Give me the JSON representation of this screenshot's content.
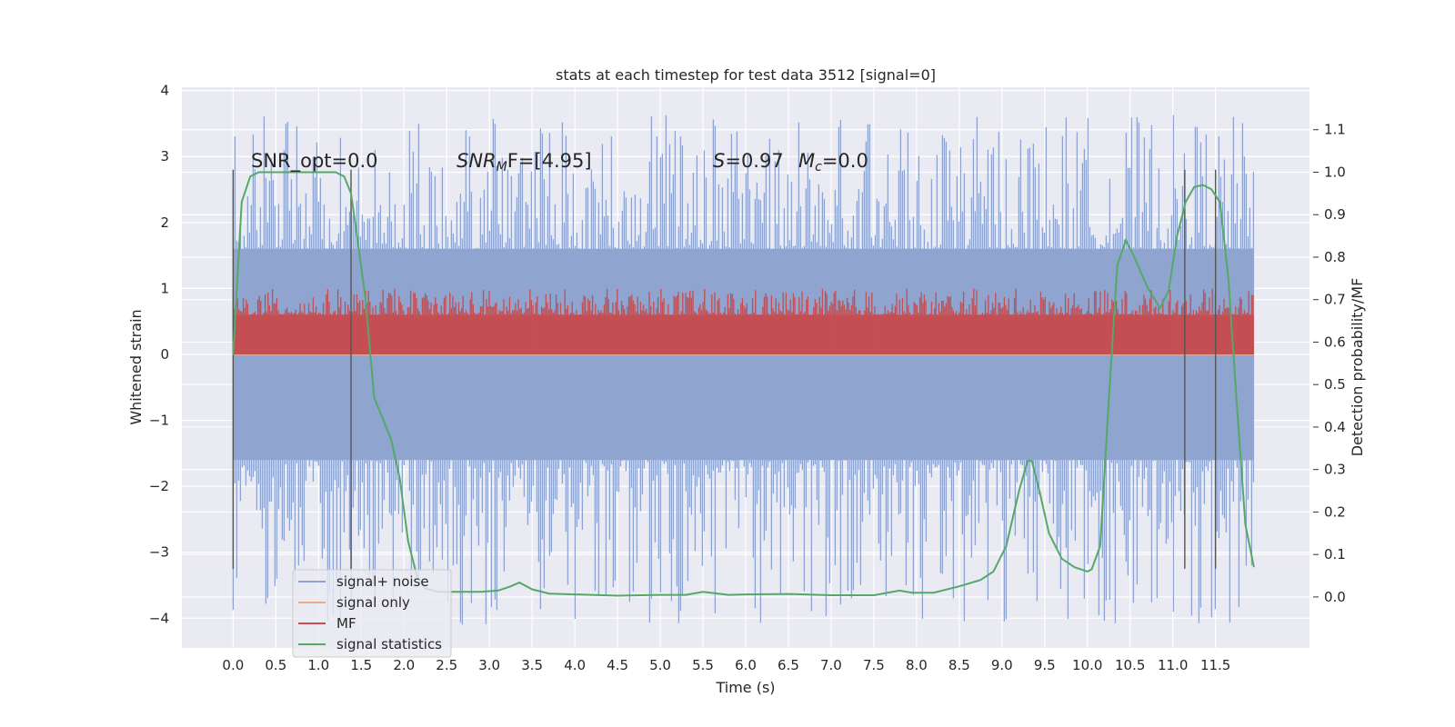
{
  "chart_data": {
    "type": "line",
    "title": "stats at each timestep for test data 3512 [signal=0]",
    "xlabel": "Time (s)",
    "ylabel": "Whitened strain",
    "y2label": "Detection probability/MF",
    "xlim": [
      -0.6,
      12.6
    ],
    "ylim": [
      -4.45,
      4.05
    ],
    "y2lim": [
      -0.12,
      1.2
    ],
    "xticks": [
      0.0,
      0.5,
      1.0,
      1.5,
      2.0,
      2.5,
      3.0,
      3.5,
      4.0,
      4.5,
      5.0,
      5.5,
      6.0,
      6.5,
      7.0,
      7.5,
      8.0,
      8.5,
      9.0,
      9.5,
      10.0,
      10.5,
      11.0,
      11.5
    ],
    "xticklabels": [
      "0.0",
      "0.5",
      "1.0",
      "1.5",
      "2.0",
      "2.5",
      "3.0",
      "3.5",
      "4.0",
      "4.5",
      "5.0",
      "5.5",
      "6.0",
      "6.5",
      "7.0",
      "7.5",
      "8.0",
      "8.5",
      "9.0",
      "9.5",
      "10.0",
      "10.5",
      "11.0",
      "11.5"
    ],
    "yticks": [
      -4,
      -3,
      -2,
      -1,
      0,
      1,
      2,
      3,
      4
    ],
    "yticklabels": [
      "−4",
      "−3",
      "−2",
      "−1",
      "0",
      "1",
      "2",
      "3",
      "4"
    ],
    "y2ticks": [
      0.0,
      0.1,
      0.2,
      0.3,
      0.4,
      0.5,
      0.6,
      0.7,
      0.8,
      0.9,
      1.0,
      1.1
    ],
    "y2ticklabels": [
      "0.0",
      "0.1",
      "0.2",
      "0.3",
      "0.4",
      "0.5",
      "0.6",
      "0.7",
      "0.8",
      "0.9",
      "1.0",
      "1.1"
    ],
    "grid": true,
    "legend_position": "bottom-left",
    "annotations": {
      "snr_opt": "SNR_opt=0.0",
      "snr_mf_main": "SNR",
      "snr_mf_sub": "M",
      "snr_mf_rest": "F=[4.95]",
      "s_label": "S",
      "s_value": "=0.97",
      "mc_label": "M",
      "mc_sub": "c",
      "mc_value": "=0.0"
    },
    "vertical_markers": [
      {
        "x": 0.0,
        "ymin": -3.25,
        "ymax": 2.8
      },
      {
        "x": 1.38,
        "ymin": -3.25,
        "ymax": 2.8
      },
      {
        "x": 11.14,
        "ymin": -3.25,
        "ymax": 2.8
      },
      {
        "x": 11.5,
        "ymin": -3.25,
        "ymax": 2.8
      }
    ],
    "series": [
      {
        "name": "signal+ noise",
        "color": "#8ea3cd",
        "axis": "left",
        "x_range": [
          0.0,
          11.95
        ],
        "band": {
          "core_min": -1.6,
          "core_max": 1.6,
          "peak_min": -4.1,
          "peak_max": 3.65
        }
      },
      {
        "name": "signal only",
        "color": "#e9a98c",
        "axis": "left",
        "x": [
          0.0,
          11.95
        ],
        "y": [
          0.0,
          0.0
        ]
      },
      {
        "name": "MF",
        "color": "#c44e52",
        "axis": "left",
        "x_range": [
          0.0,
          11.95
        ],
        "band": {
          "core_min": 0.0,
          "core_max": 0.6,
          "peak_min": 0.0,
          "peak_max": 1.0
        }
      },
      {
        "name": "signal statistics",
        "color": "#55a868",
        "axis": "right",
        "x": [
          0.0,
          0.05,
          0.1,
          0.2,
          0.3,
          0.5,
          0.8,
          1.0,
          1.2,
          1.3,
          1.38,
          1.45,
          1.55,
          1.65,
          1.75,
          1.85,
          1.95,
          2.05,
          2.15,
          2.25,
          2.4,
          2.6,
          2.9,
          3.1,
          3.25,
          3.35,
          3.5,
          3.7,
          4.0,
          4.5,
          5.0,
          5.3,
          5.5,
          5.8,
          6.0,
          6.5,
          7.0,
          7.5,
          7.8,
          7.95,
          8.2,
          8.5,
          8.75,
          8.9,
          9.05,
          9.2,
          9.3,
          9.35,
          9.45,
          9.55,
          9.7,
          9.85,
          10.0,
          10.05,
          10.15,
          10.25,
          10.35,
          10.45,
          10.55,
          10.7,
          10.85,
          10.95,
          11.05,
          11.15,
          11.25,
          11.35,
          11.45,
          11.55,
          11.65,
          11.75,
          11.85,
          11.95
        ],
        "y": [
          0.57,
          0.75,
          0.93,
          0.99,
          1.0,
          1.0,
          1.0,
          1.0,
          1.0,
          0.99,
          0.95,
          0.85,
          0.7,
          0.47,
          0.42,
          0.37,
          0.28,
          0.13,
          0.05,
          0.02,
          0.012,
          0.012,
          0.012,
          0.015,
          0.025,
          0.034,
          0.018,
          0.008,
          0.006,
          0.003,
          0.005,
          0.005,
          0.012,
          0.005,
          0.006,
          0.007,
          0.004,
          0.004,
          0.015,
          0.01,
          0.01,
          0.025,
          0.04,
          0.06,
          0.12,
          0.25,
          0.32,
          0.32,
          0.24,
          0.15,
          0.09,
          0.07,
          0.06,
          0.065,
          0.12,
          0.46,
          0.78,
          0.84,
          0.8,
          0.73,
          0.68,
          0.72,
          0.85,
          0.93,
          0.965,
          0.97,
          0.96,
          0.93,
          0.75,
          0.45,
          0.17,
          0.07
        ]
      }
    ]
  }
}
